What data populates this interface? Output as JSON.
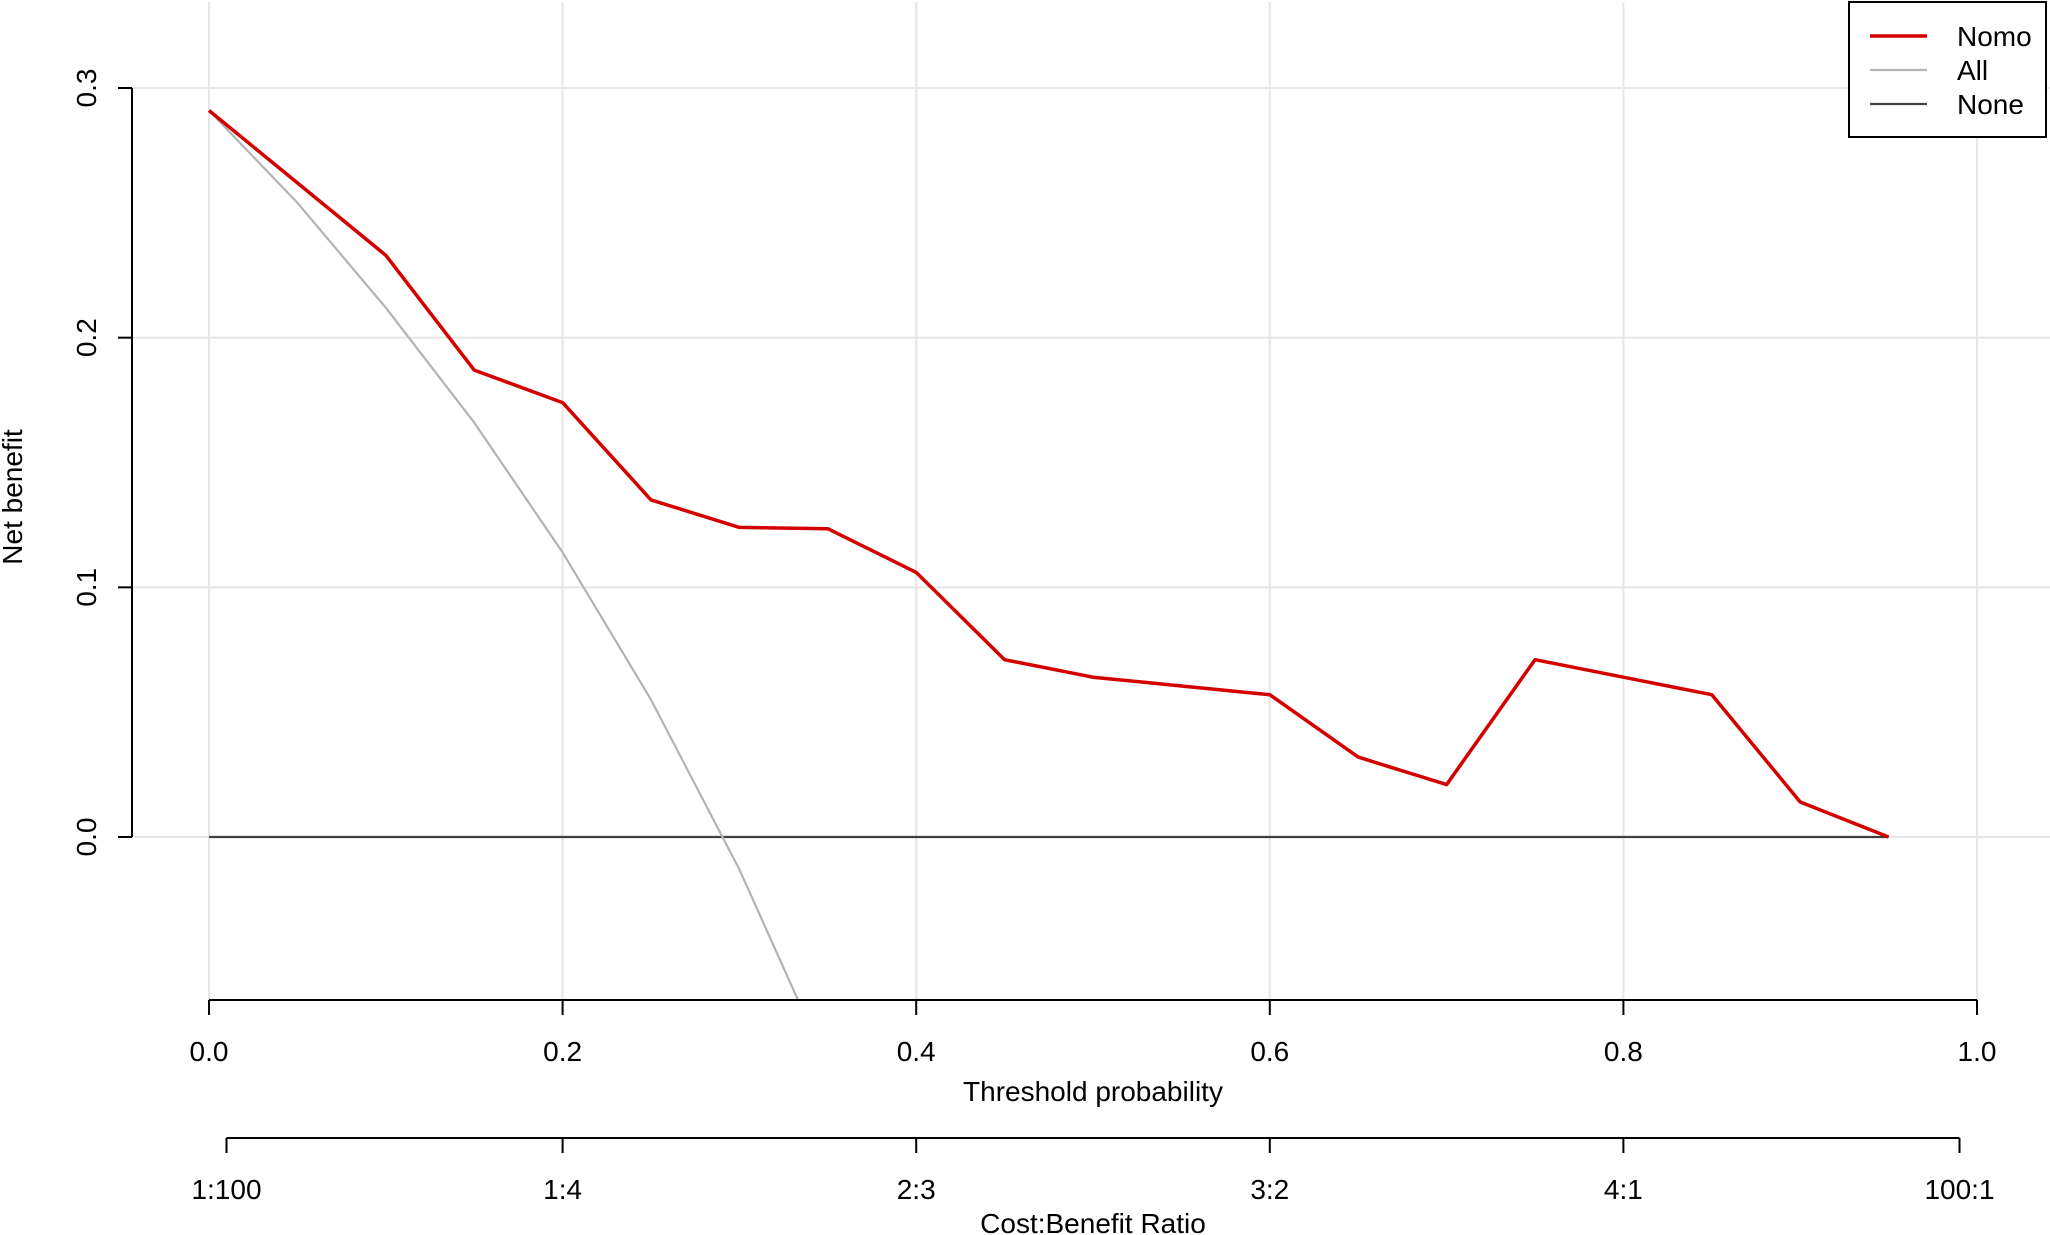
{
  "chart_data": {
    "type": "line",
    "xlabel": "Threshold probability",
    "ylabel": "Net benefit",
    "xlim": [
      0,
      1
    ],
    "ylim": [
      -0.065,
      0.3
    ],
    "grid": true,
    "legend_position": "top-right",
    "x_ticks": [
      "0.0",
      "0.2",
      "0.4",
      "0.6",
      "0.8",
      "1.0"
    ],
    "x_tick_values": [
      0,
      0.2,
      0.4,
      0.6,
      0.8,
      1.0
    ],
    "y_ticks": [
      "0.0",
      "0.1",
      "0.2",
      "0.3"
    ],
    "y_tick_values": [
      0,
      0.1,
      0.2,
      0.3
    ],
    "secondary_axis": {
      "label": "Cost:Benefit Ratio",
      "ticks": [
        "1:100",
        "1:4",
        "2:3",
        "3:2",
        "4:1",
        "100:1"
      ],
      "tick_values": [
        0.0099,
        0.2,
        0.4,
        0.6,
        0.8,
        0.9901
      ]
    },
    "series": [
      {
        "name": "Nomo",
        "color": "#d40000",
        "x": [
          0,
          0.05,
          0.1,
          0.15,
          0.2,
          0.25,
          0.3,
          0.35,
          0.4,
          0.45,
          0.5,
          0.55,
          0.6,
          0.65,
          0.7,
          0.75,
          0.8,
          0.85,
          0.9,
          0.95
        ],
        "values": [
          0.291,
          0.262,
          0.233,
          0.187,
          0.174,
          0.135,
          0.124,
          0.1235,
          0.106,
          0.071,
          0.064,
          0.0605,
          0.057,
          0.032,
          0.021,
          0.071,
          0.064,
          0.057,
          0.014,
          0.0
        ]
      },
      {
        "name": "All",
        "color": "#b3b3b3",
        "x": [
          0,
          0.05,
          0.1,
          0.15,
          0.2,
          0.25,
          0.3,
          0.333
        ],
        "values": [
          0.291,
          0.254,
          0.212,
          0.166,
          0.114,
          0.055,
          -0.013,
          -0.065
        ]
      },
      {
        "name": "None",
        "color": "#404040",
        "x": [
          0,
          0.95
        ],
        "values": [
          0,
          0
        ]
      }
    ]
  }
}
